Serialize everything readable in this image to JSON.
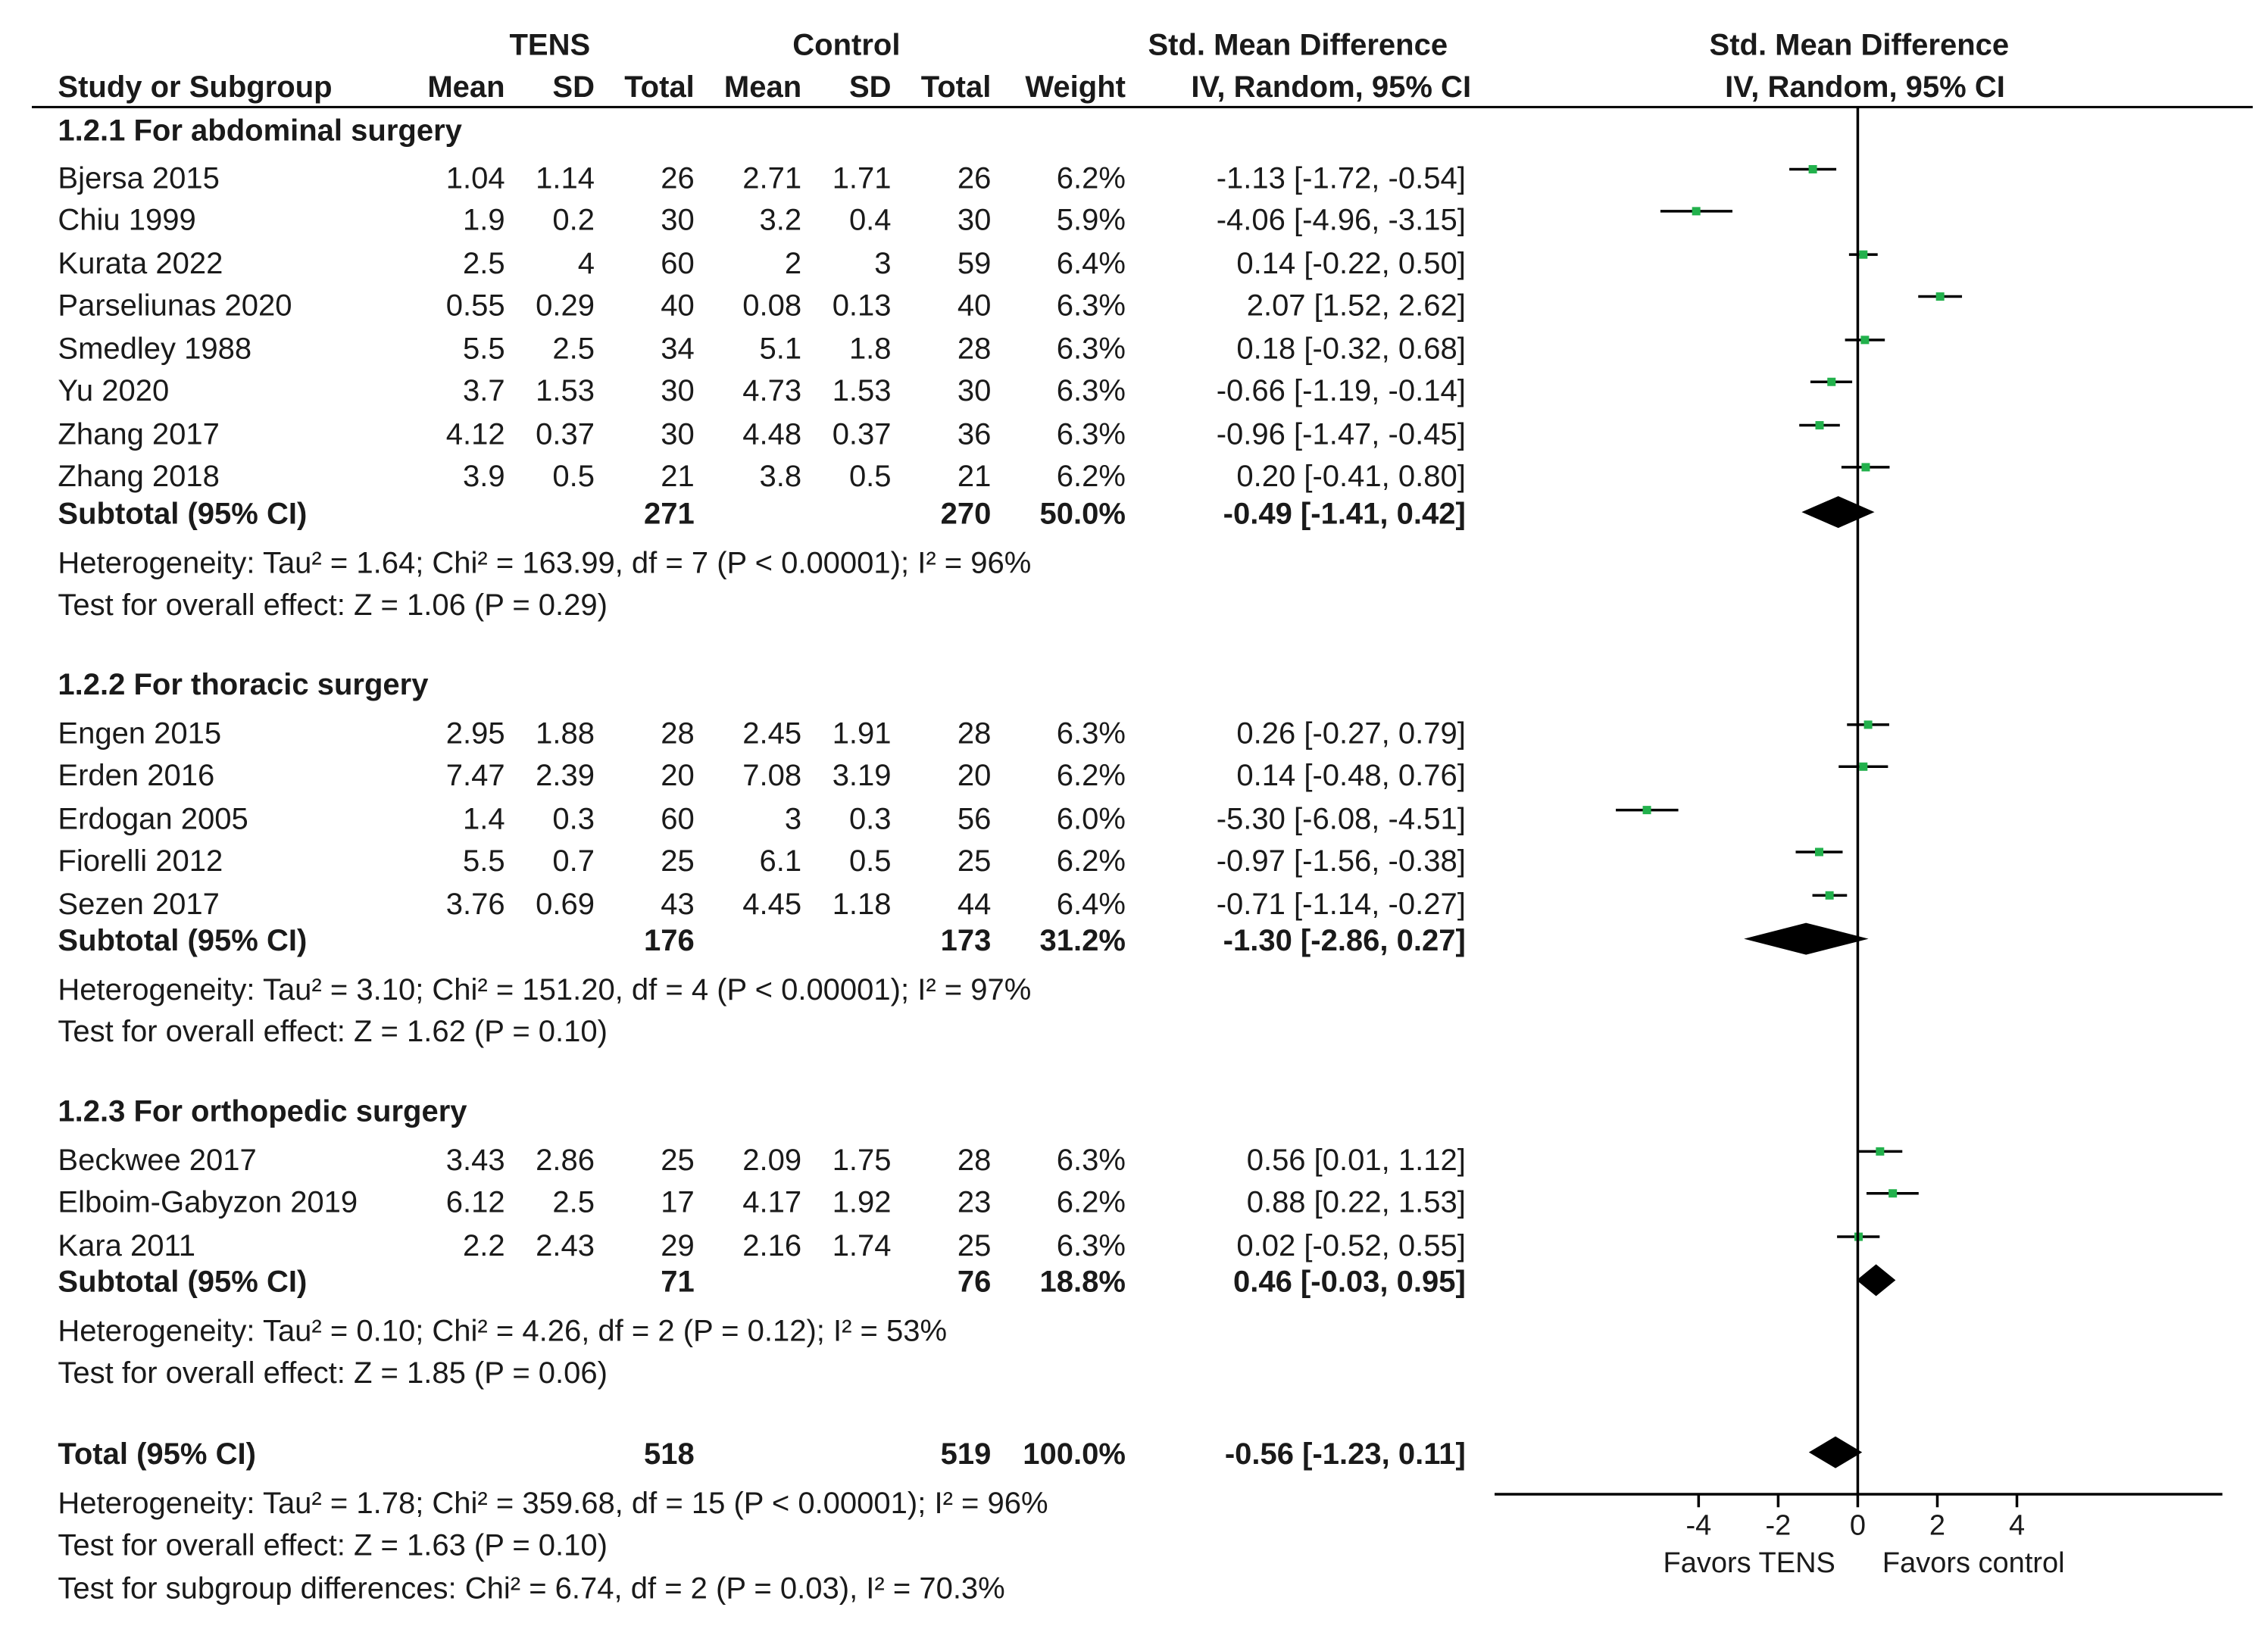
{
  "chart_data": {
    "type": "forest",
    "header": {
      "tens": "TENS",
      "control": "Control",
      "smd_col": "Std. Mean Difference",
      "smd_col_sub": "IV, Random, 95% CI",
      "plot_title": "Std. Mean Difference",
      "plot_sub": "IV, Random, 95% CI",
      "columns": [
        "Study or Subgroup",
        "Mean",
        "SD",
        "Total",
        "Mean",
        "SD",
        "Total",
        "Weight"
      ]
    },
    "groups": [
      {
        "title": "1.2.1 For abdominal surgery",
        "studies": [
          {
            "name": "Bjersa 2015",
            "tens_mean": "1.04",
            "tens_sd": "1.14",
            "tens_total": "26",
            "ctrl_mean": "2.71",
            "ctrl_sd": "1.71",
            "ctrl_total": "26",
            "weight": "6.2%",
            "ci_text": "-1.13 [-1.72, -0.54]",
            "smd": -1.13,
            "lo": -1.72,
            "hi": -0.54
          },
          {
            "name": "Chiu 1999",
            "tens_mean": "1.9",
            "tens_sd": "0.2",
            "tens_total": "30",
            "ctrl_mean": "3.2",
            "ctrl_sd": "0.4",
            "ctrl_total": "30",
            "weight": "5.9%",
            "ci_text": "-4.06 [-4.96, -3.15]",
            "smd": -4.06,
            "lo": -4.96,
            "hi": -3.15
          },
          {
            "name": "Kurata 2022",
            "tens_mean": "2.5",
            "tens_sd": "4",
            "tens_total": "60",
            "ctrl_mean": "2",
            "ctrl_sd": "3",
            "ctrl_total": "59",
            "weight": "6.4%",
            "ci_text": "0.14 [-0.22, 0.50]",
            "smd": 0.14,
            "lo": -0.22,
            "hi": 0.5
          },
          {
            "name": "Parseliunas 2020",
            "tens_mean": "0.55",
            "tens_sd": "0.29",
            "tens_total": "40",
            "ctrl_mean": "0.08",
            "ctrl_sd": "0.13",
            "ctrl_total": "40",
            "weight": "6.3%",
            "ci_text": "2.07 [1.52, 2.62]",
            "smd": 2.07,
            "lo": 1.52,
            "hi": 2.62
          },
          {
            "name": "Smedley 1988",
            "tens_mean": "5.5",
            "tens_sd": "2.5",
            "tens_total": "34",
            "ctrl_mean": "5.1",
            "ctrl_sd": "1.8",
            "ctrl_total": "28",
            "weight": "6.3%",
            "ci_text": "0.18 [-0.32, 0.68]",
            "smd": 0.18,
            "lo": -0.32,
            "hi": 0.68
          },
          {
            "name": "Yu 2020",
            "tens_mean": "3.7",
            "tens_sd": "1.53",
            "tens_total": "30",
            "ctrl_mean": "4.73",
            "ctrl_sd": "1.53",
            "ctrl_total": "30",
            "weight": "6.3%",
            "ci_text": "-0.66 [-1.19, -0.14]",
            "smd": -0.66,
            "lo": -1.19,
            "hi": -0.14
          },
          {
            "name": "Zhang 2017",
            "tens_mean": "4.12",
            "tens_sd": "0.37",
            "tens_total": "30",
            "ctrl_mean": "4.48",
            "ctrl_sd": "0.37",
            "ctrl_total": "36",
            "weight": "6.3%",
            "ci_text": "-0.96 [-1.47, -0.45]",
            "smd": -0.96,
            "lo": -1.47,
            "hi": -0.45
          },
          {
            "name": "Zhang 2018",
            "tens_mean": "3.9",
            "tens_sd": "0.5",
            "tens_total": "21",
            "ctrl_mean": "3.8",
            "ctrl_sd": "0.5",
            "ctrl_total": "21",
            "weight": "6.2%",
            "ci_text": "0.20 [-0.41, 0.80]",
            "smd": 0.2,
            "lo": -0.41,
            "hi": 0.8
          }
        ],
        "subtotal": {
          "label": "Subtotal (95% CI)",
          "tens_total": "271",
          "ctrl_total": "270",
          "weight": "50.0%",
          "ci_text": "-0.49 [-1.41, 0.42]",
          "smd": -0.49,
          "lo": -1.41,
          "hi": 0.42
        },
        "heterogeneity": "Heterogeneity: Tau² = 1.64; Chi² = 163.99, df = 7 (P < 0.00001); I² = 96%",
        "overall": "Test for overall effect: Z = 1.06 (P = 0.29)"
      },
      {
        "title": "1.2.2 For thoracic surgery",
        "studies": [
          {
            "name": "Engen 2015",
            "tens_mean": "2.95",
            "tens_sd": "1.88",
            "tens_total": "28",
            "ctrl_mean": "2.45",
            "ctrl_sd": "1.91",
            "ctrl_total": "28",
            "weight": "6.3%",
            "ci_text": "0.26 [-0.27, 0.79]",
            "smd": 0.26,
            "lo": -0.27,
            "hi": 0.79
          },
          {
            "name": "Erden 2016",
            "tens_mean": "7.47",
            "tens_sd": "2.39",
            "tens_total": "20",
            "ctrl_mean": "7.08",
            "ctrl_sd": "3.19",
            "ctrl_total": "20",
            "weight": "6.2%",
            "ci_text": "0.14 [-0.48, 0.76]",
            "smd": 0.14,
            "lo": -0.48,
            "hi": 0.76
          },
          {
            "name": "Erdogan 2005",
            "tens_mean": "1.4",
            "tens_sd": "0.3",
            "tens_total": "60",
            "ctrl_mean": "3",
            "ctrl_sd": "0.3",
            "ctrl_total": "56",
            "weight": "6.0%",
            "ci_text": "-5.30 [-6.08, -4.51]",
            "smd": -5.3,
            "lo": -6.08,
            "hi": -4.51
          },
          {
            "name": "Fiorelli 2012",
            "tens_mean": "5.5",
            "tens_sd": "0.7",
            "tens_total": "25",
            "ctrl_mean": "6.1",
            "ctrl_sd": "0.5",
            "ctrl_total": "25",
            "weight": "6.2%",
            "ci_text": "-0.97 [-1.56, -0.38]",
            "smd": -0.97,
            "lo": -1.56,
            "hi": -0.38
          },
          {
            "name": "Sezen 2017",
            "tens_mean": "3.76",
            "tens_sd": "0.69",
            "tens_total": "43",
            "ctrl_mean": "4.45",
            "ctrl_sd": "1.18",
            "ctrl_total": "44",
            "weight": "6.4%",
            "ci_text": "-0.71 [-1.14, -0.27]",
            "smd": -0.71,
            "lo": -1.14,
            "hi": -0.27
          }
        ],
        "subtotal": {
          "label": "Subtotal (95% CI)",
          "tens_total": "176",
          "ctrl_total": "173",
          "weight": "31.2%",
          "ci_text": "-1.30 [-2.86, 0.27]",
          "smd": -1.3,
          "lo": -2.86,
          "hi": 0.27
        },
        "heterogeneity": "Heterogeneity: Tau² = 3.10; Chi² = 151.20, df = 4 (P < 0.00001); I² = 97%",
        "overall": "Test for overall effect: Z = 1.62 (P = 0.10)"
      },
      {
        "title": "1.2.3 For orthopedic surgery",
        "studies": [
          {
            "name": "Beckwee 2017",
            "tens_mean": "3.43",
            "tens_sd": "2.86",
            "tens_total": "25",
            "ctrl_mean": "2.09",
            "ctrl_sd": "1.75",
            "ctrl_total": "28",
            "weight": "6.3%",
            "ci_text": "0.56 [0.01, 1.12]",
            "smd": 0.56,
            "lo": 0.01,
            "hi": 1.12
          },
          {
            "name": "Elboim-Gabyzon 2019",
            "tens_mean": "6.12",
            "tens_sd": "2.5",
            "tens_total": "17",
            "ctrl_mean": "4.17",
            "ctrl_sd": "1.92",
            "ctrl_total": "23",
            "weight": "6.2%",
            "ci_text": "0.88 [0.22, 1.53]",
            "smd": 0.88,
            "lo": 0.22,
            "hi": 1.53
          },
          {
            "name": "Kara 2011",
            "tens_mean": "2.2",
            "tens_sd": "2.43",
            "tens_total": "29",
            "ctrl_mean": "2.16",
            "ctrl_sd": "1.74",
            "ctrl_total": "25",
            "weight": "6.3%",
            "ci_text": "0.02 [-0.52, 0.55]",
            "smd": 0.02,
            "lo": -0.52,
            "hi": 0.55
          }
        ],
        "subtotal": {
          "label": "Subtotal (95% CI)",
          "tens_total": "71",
          "ctrl_total": "76",
          "weight": "18.8%",
          "ci_text": "0.46 [-0.03, 0.95]",
          "smd": 0.46,
          "lo": -0.03,
          "hi": 0.95
        },
        "heterogeneity": "Heterogeneity: Tau² = 0.10; Chi² = 4.26, df = 2 (P = 0.12); I² = 53%",
        "overall": "Test for overall effect: Z = 1.85 (P = 0.06)"
      }
    ],
    "total": {
      "label": "Total (95% CI)",
      "tens_total": "518",
      "ctrl_total": "519",
      "weight": "100.0%",
      "ci_text": "-0.56 [-1.23, 0.11]",
      "smd": -0.56,
      "lo": -1.23,
      "hi": 0.11
    },
    "total_heterogeneity": "Heterogeneity: Tau² = 1.78; Chi² = 359.68, df = 15 (P < 0.00001); I² = 96%",
    "total_overall": "Test for overall effect: Z = 1.63 (P = 0.10)",
    "subgroup_diff": "Test for subgroup differences: Chi² = 6.74, df = 2 (P = 0.03), I² = 70.3%",
    "axis": {
      "ticks": [
        -4,
        -2,
        0,
        2,
        4
      ],
      "tick_labels": [
        "-4",
        "-2",
        "0",
        "2",
        "4"
      ],
      "range": [
        -9,
        9.2
      ]
    },
    "favors_left": "Favors TENS",
    "favors_right": "Favors control",
    "colors": {
      "point": "#22b14c",
      "diamond": "#000000",
      "line": "#000000"
    }
  }
}
